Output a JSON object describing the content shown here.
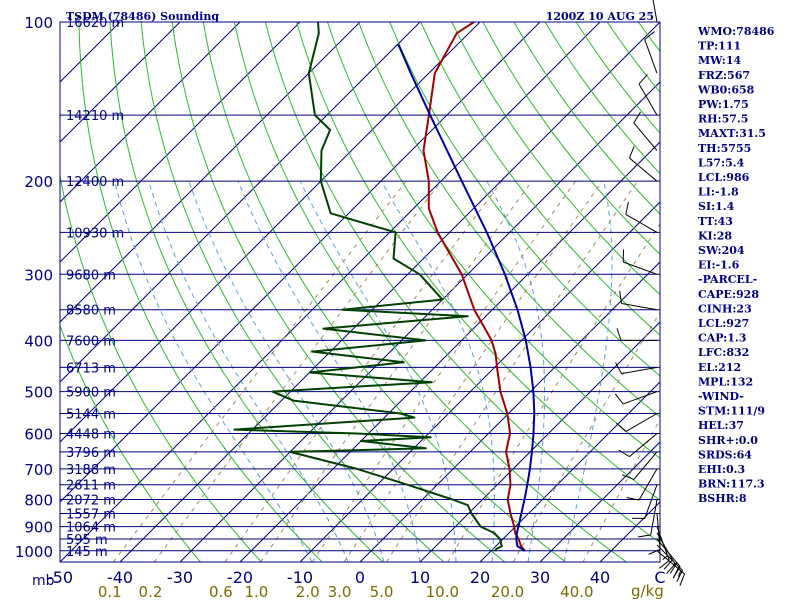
{
  "header": {
    "title": "TSDM (78486) Sounding",
    "datetime": "1200Z 10 AUG 25"
  },
  "colors": {
    "frame": "#000080",
    "isobar": "#000080",
    "isotherm": "#000080",
    "dry_adiabat": "#2db82d",
    "moist_adiabat": "#5a9fd6",
    "mixing_ratio": "#a08c5a",
    "temperature": "#a00000",
    "dewpoint": "#004000",
    "parcel": "#0000a0",
    "wind_barb": "#000000"
  },
  "chart_data": {
    "type": "skew-t",
    "pressure_axis_label": "mb",
    "pressure_levels": [
      100,
      200,
      300,
      400,
      500,
      600,
      700,
      800,
      900,
      1000
    ],
    "height_labels": [
      {
        "p": 100,
        "label": "16620 m"
      },
      {
        "p": 150,
        "label": "14210 m"
      },
      {
        "p": 200,
        "label": "12400 m"
      },
      {
        "p": 250,
        "label": "10930 m"
      },
      {
        "p": 300,
        "label": "9680 m"
      },
      {
        "p": 350,
        "label": "8580 m"
      },
      {
        "p": 400,
        "label": "7600 m"
      },
      {
        "p": 450,
        "label": "6713 m"
      },
      {
        "p": 500,
        "label": "5900 m"
      },
      {
        "p": 550,
        "label": "5144 m"
      },
      {
        "p": 600,
        "label": "4448 m"
      },
      {
        "p": 650,
        "label": "3796 m"
      },
      {
        "p": 700,
        "label": "3188 m"
      },
      {
        "p": 750,
        "label": "2611 m"
      },
      {
        "p": 800,
        "label": "2072 m"
      },
      {
        "p": 850,
        "label": "1557 m"
      },
      {
        "p": 900,
        "label": "1064 m"
      },
      {
        "p": 950,
        "label": "595 m"
      },
      {
        "p": 1000,
        "label": "145 m"
      }
    ],
    "temperature_ticks": [
      "-50",
      "-40",
      "-30",
      "-20",
      "-10",
      "0",
      "10",
      "20",
      "30",
      "40",
      "C"
    ],
    "mixing_ratio_ticks": [
      "0.1",
      "0.2",
      "0.6",
      "1.0",
      "2.0",
      "3.0",
      "5.0",
      "10.0",
      "20.0",
      "40.0"
    ],
    "mixing_ratio_unit": "g/kg",
    "series": [
      {
        "name": "Temperature",
        "color": "#a00000",
        "points": [
          [
            1000,
            25.6
          ],
          [
            980,
            24.2
          ],
          [
            950,
            22.6
          ],
          [
            925,
            21.0
          ],
          [
            900,
            19.8
          ],
          [
            850,
            17.0
          ],
          [
            800,
            14.2
          ],
          [
            750,
            12.2
          ],
          [
            700,
            9.4
          ],
          [
            650,
            6.0
          ],
          [
            625,
            4.8
          ],
          [
            600,
            3.6
          ],
          [
            550,
            -0.2
          ],
          [
            500,
            -5.0
          ],
          [
            450,
            -9.6
          ],
          [
            425,
            -12.0
          ],
          [
            400,
            -15.0
          ],
          [
            350,
            -23.0
          ],
          [
            300,
            -31.0
          ],
          [
            250,
            -42.0
          ],
          [
            225,
            -47.5
          ],
          [
            200,
            -52.0
          ],
          [
            175,
            -58.0
          ],
          [
            150,
            -63.0
          ],
          [
            125,
            -69.0
          ],
          [
            105,
            -72.0
          ],
          [
            100,
            -71.0
          ]
        ]
      },
      {
        "name": "Dewpoint",
        "color": "#004000",
        "points": [
          [
            1000,
            20.6
          ],
          [
            990,
            20.6
          ],
          [
            980,
            21.0
          ],
          [
            950,
            19.5
          ],
          [
            925,
            17.5
          ],
          [
            900,
            14.2
          ],
          [
            850,
            10.5
          ],
          [
            820,
            8.5
          ],
          [
            800,
            5.0
          ],
          [
            750,
            -5.0
          ],
          [
            700,
            -16.0
          ],
          [
            650,
            -30.0
          ],
          [
            640,
            -8.0
          ],
          [
            620,
            -20.0
          ],
          [
            610,
            -9.0
          ],
          [
            600,
            -22.0
          ],
          [
            590,
            -43.0
          ],
          [
            560,
            -15.0
          ],
          [
            550,
            -18.0
          ],
          [
            520,
            -38.0
          ],
          [
            500,
            -43.0
          ],
          [
            480,
            -18.0
          ],
          [
            460,
            -40.0
          ],
          [
            440,
            -26.0
          ],
          [
            420,
            -43.0
          ],
          [
            400,
            -26.0
          ],
          [
            380,
            -45.0
          ],
          [
            360,
            -23.0
          ],
          [
            350,
            -45.0
          ],
          [
            335,
            -30.0
          ],
          [
            300,
            -38.0
          ],
          [
            280,
            -45.0
          ],
          [
            250,
            -49.0
          ],
          [
            230,
            -63.0
          ],
          [
            200,
            -70.0
          ],
          [
            175,
            -75.0
          ],
          [
            160,
            -77.0
          ],
          [
            150,
            -82.0
          ],
          [
            125,
            -90.0
          ],
          [
            105,
            -95.0
          ],
          [
            100,
            -97.0
          ]
        ]
      },
      {
        "name": "Parcel",
        "color": "#0000a0",
        "points": [
          [
            1000,
            25.6
          ],
          [
            980,
            23.6
          ],
          [
            950,
            22.2
          ],
          [
            925,
            21.3
          ],
          [
            900,
            20.5
          ],
          [
            850,
            18.8
          ],
          [
            800,
            17.0
          ],
          [
            750,
            15.0
          ],
          [
            700,
            12.8
          ],
          [
            650,
            10.3
          ],
          [
            600,
            7.5
          ],
          [
            550,
            4.3
          ],
          [
            500,
            0.5
          ],
          [
            450,
            -4.0
          ],
          [
            400,
            -9.3
          ],
          [
            350,
            -15.8
          ],
          [
            300,
            -23.8
          ],
          [
            250,
            -33.8
          ],
          [
            200,
            -46.5
          ],
          [
            150,
            -62.8
          ],
          [
            125,
            -73.0
          ],
          [
            110,
            -80.0
          ]
        ]
      }
    ],
    "winds": [
      {
        "p": 1000,
        "dir": 130,
        "spd": 15
      },
      {
        "p": 975,
        "dir": 135,
        "spd": 20
      },
      {
        "p": 950,
        "dir": 140,
        "spd": 20
      },
      {
        "p": 925,
        "dir": 150,
        "spd": 20
      },
      {
        "p": 900,
        "dir": 160,
        "spd": 15
      },
      {
        "p": 850,
        "dir": 175,
        "spd": 10
      },
      {
        "p": 800,
        "dir": 190,
        "spd": 10
      },
      {
        "p": 750,
        "dir": 200,
        "spd": 10
      },
      {
        "p": 700,
        "dir": 210,
        "spd": 10
      },
      {
        "p": 650,
        "dir": 220,
        "spd": 10
      },
      {
        "p": 600,
        "dir": 230,
        "spd": 10
      },
      {
        "p": 550,
        "dir": 240,
        "spd": 10
      },
      {
        "p": 500,
        "dir": 250,
        "spd": 10
      },
      {
        "p": 450,
        "dir": 260,
        "spd": 10
      },
      {
        "p": 400,
        "dir": 270,
        "spd": 10
      },
      {
        "p": 350,
        "dir": 280,
        "spd": 10
      },
      {
        "p": 300,
        "dir": 290,
        "spd": 10
      },
      {
        "p": 250,
        "dir": 300,
        "spd": 10
      },
      {
        "p": 200,
        "dir": 310,
        "spd": 10
      },
      {
        "p": 175,
        "dir": 320,
        "spd": 10
      },
      {
        "p": 150,
        "dir": 330,
        "spd": 10
      },
      {
        "p": 125,
        "dir": 340,
        "spd": 10
      },
      {
        "p": 100,
        "dir": 350,
        "spd": 10
      }
    ]
  },
  "indices": [
    "WMO:78486",
    "TP:111",
    "MW:14",
    "FRZ:567",
    "WB0:658",
    "PW:1.75",
    "RH:57.5",
    "MAXT:31.5",
    "TH:5755",
    "L57:5.4",
    "LCL:986",
    "LI:-1.8",
    "SI:1.4",
    "TT:43",
    "KI:28",
    "SW:204",
    "EI:-1.6",
    "-PARCEL-",
    "CAPE:928",
    "CINH:23",
    "LCL:927",
    "CAP:1.3",
    "LFC:832",
    "EL:212",
    "MPL:132",
    "-WIND-",
    "STM:111/9",
    "HEL:37",
    "SHR+:0.0",
    "SRDS:64",
    "EHI:0.3",
    "BRN:117.3",
    "BSHR:8"
  ]
}
